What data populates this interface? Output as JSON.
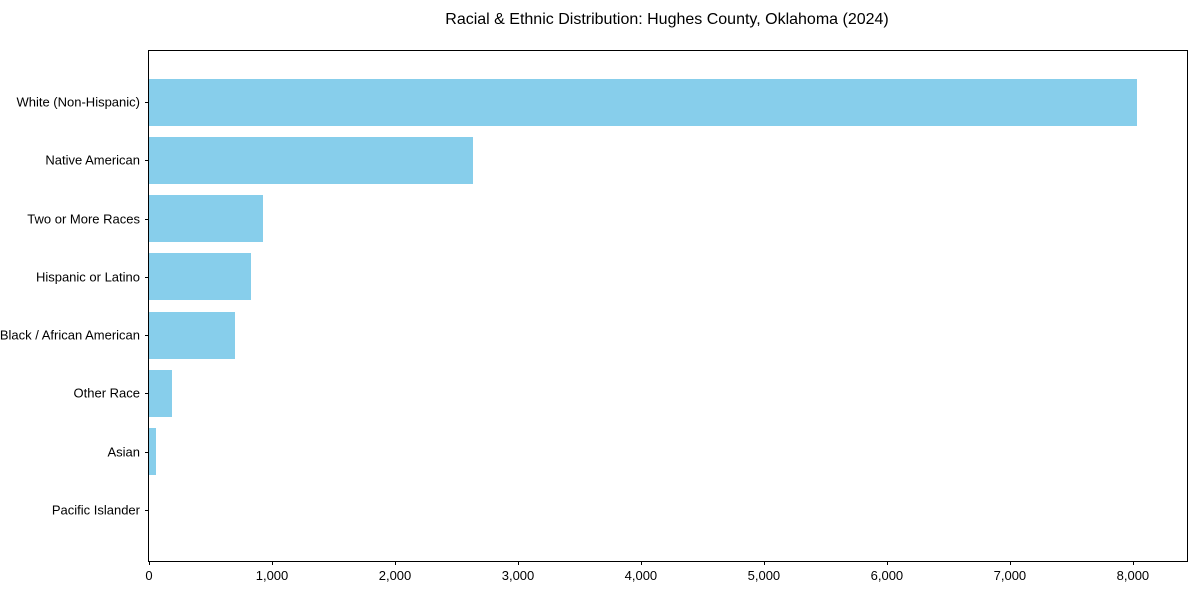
{
  "title": "Racial & Ethnic Distribution: Hughes County, Oklahoma (2024)",
  "chart_data": {
    "type": "bar",
    "orientation": "horizontal",
    "title": "Racial & Ethnic Distribution: Hughes County, Oklahoma (2024)",
    "xlabel": "",
    "ylabel": "",
    "categories": [
      "White (Non-Hispanic)",
      "Native American",
      "Two or More Races",
      "Hispanic or Latino",
      "Black / African American",
      "Other Race",
      "Asian",
      "Pacific Islander"
    ],
    "values": [
      8035,
      2630,
      930,
      830,
      695,
      190,
      60,
      0
    ],
    "xlim": [
      0,
      8440
    ],
    "xticks": [
      0,
      1000,
      2000,
      3000,
      4000,
      5000,
      6000,
      7000,
      8000
    ],
    "xtick_labels": [
      "0",
      "1,000",
      "2,000",
      "3,000",
      "4,000",
      "5,000",
      "6,000",
      "7,000",
      "8,000"
    ],
    "bar_color": "#87CEEB",
    "spine_color": "#000000",
    "grid": false,
    "legend": null,
    "bar_fraction": 0.8,
    "outer_pad_units": 0.875
  }
}
